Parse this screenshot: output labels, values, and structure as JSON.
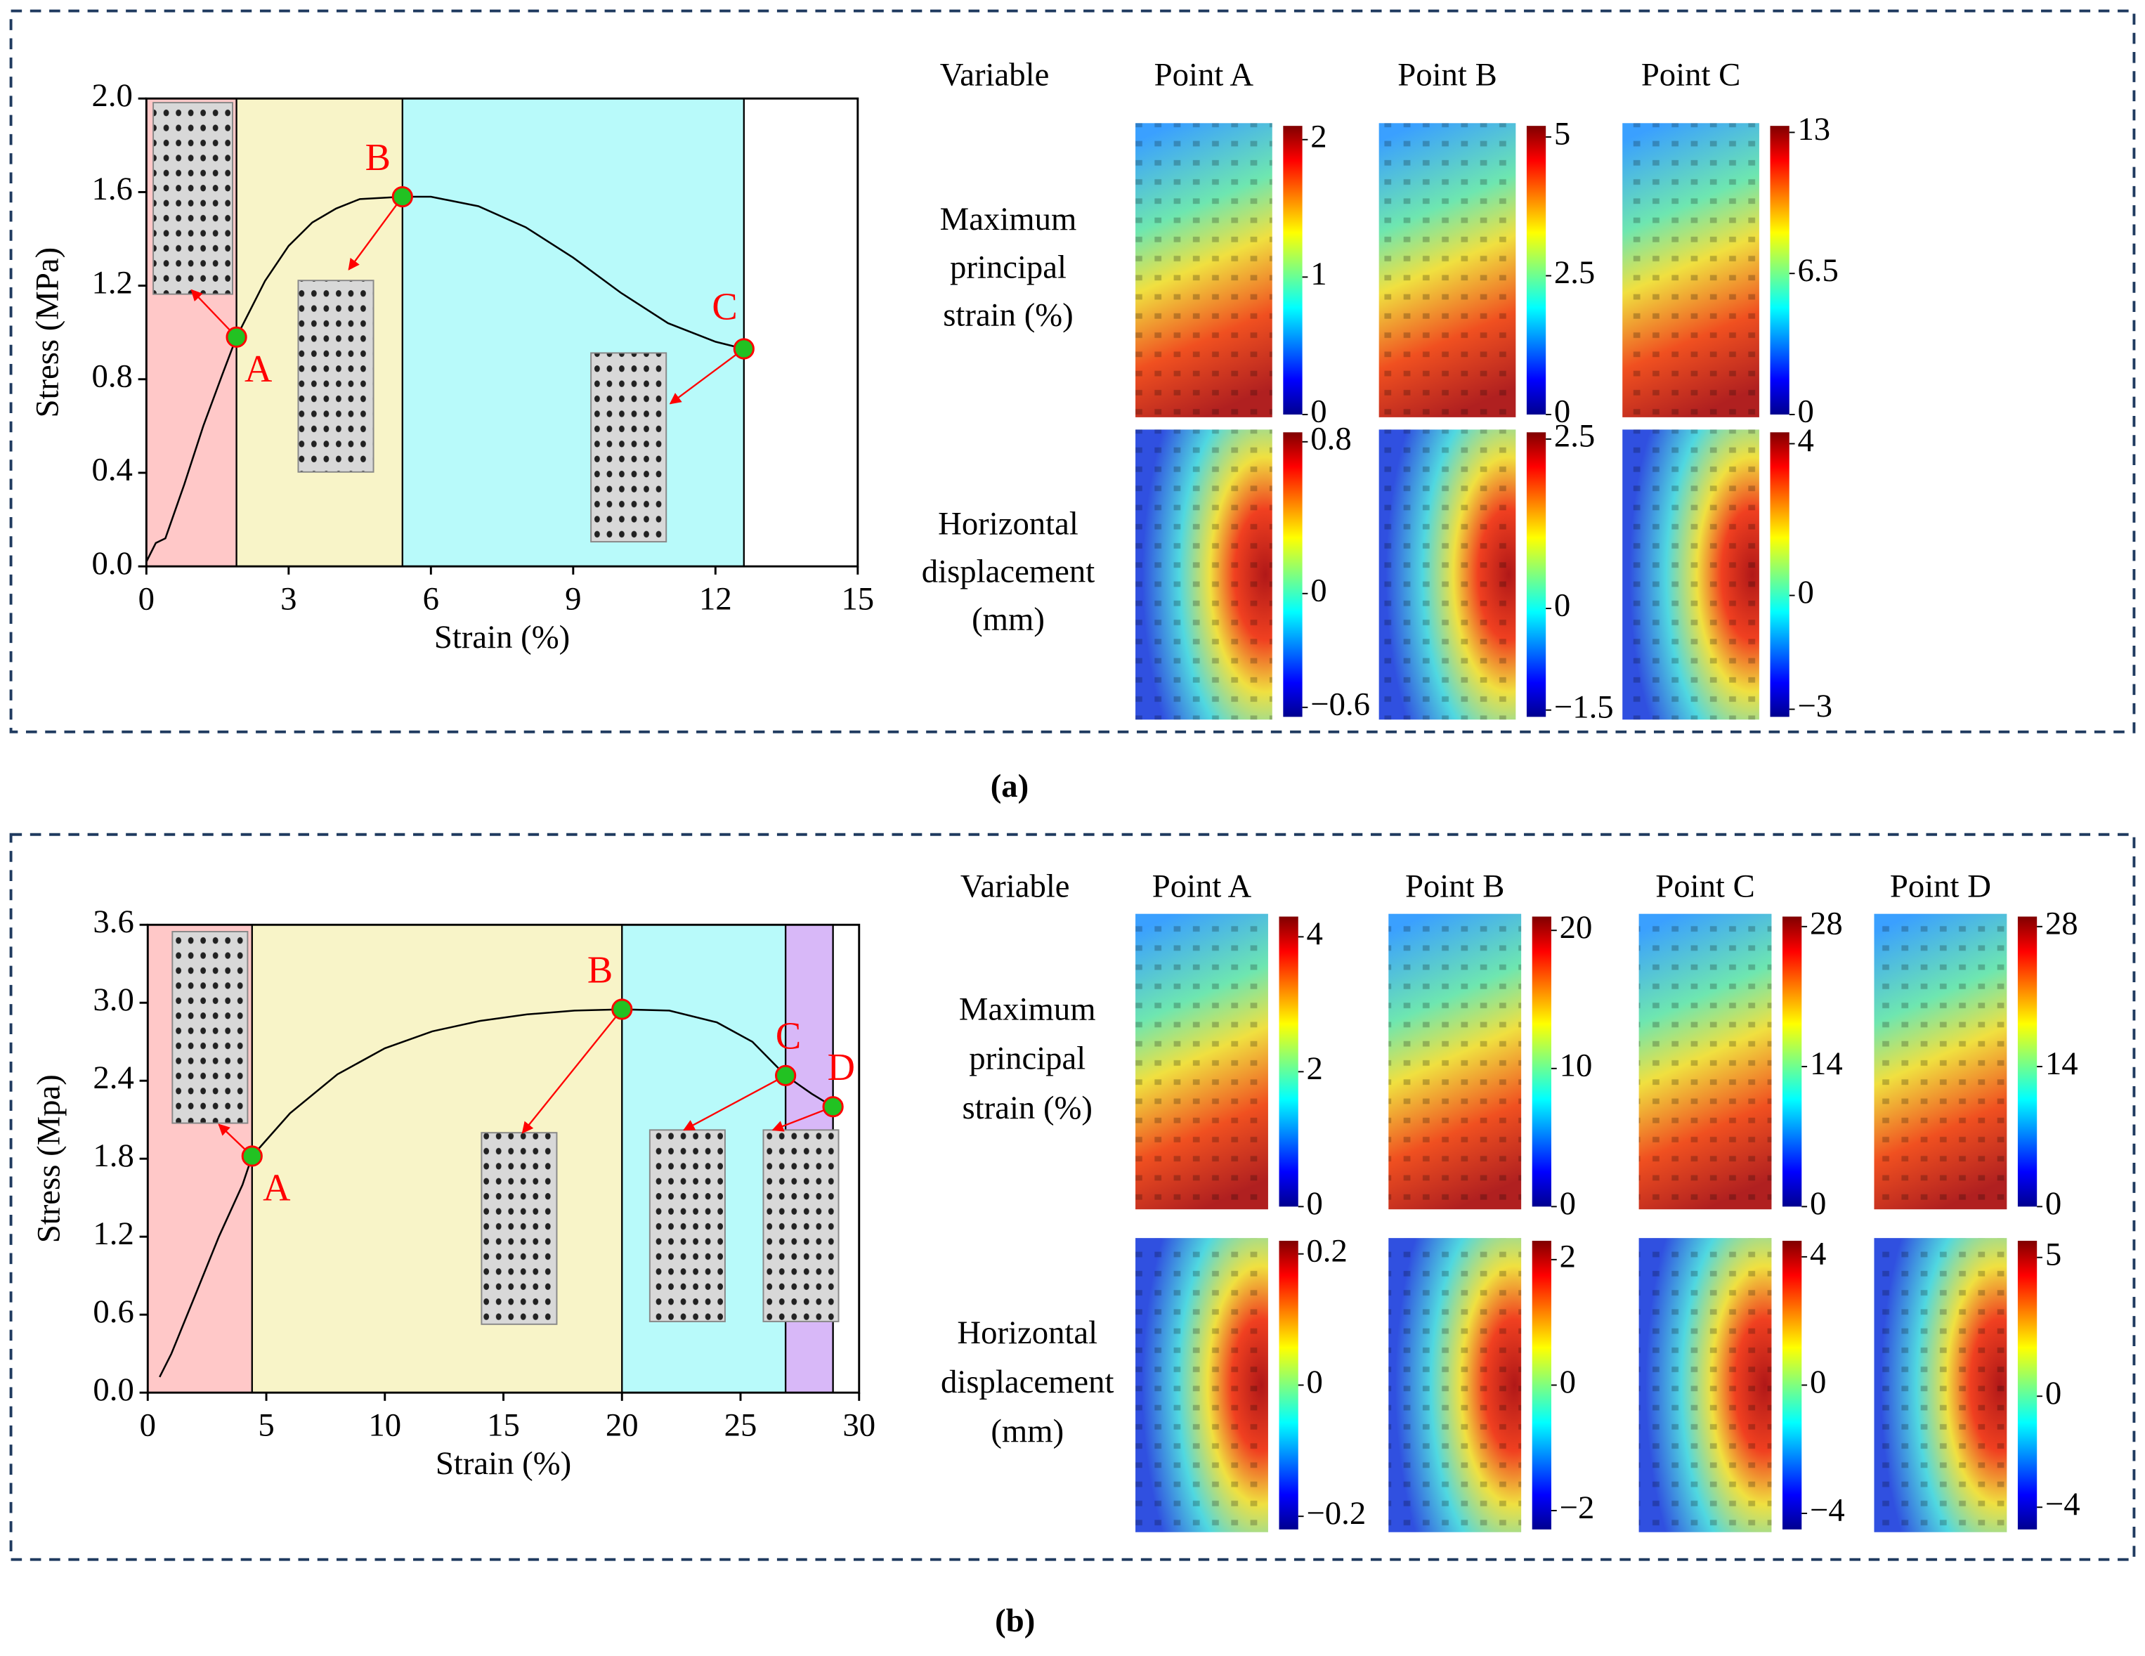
{
  "chart_data": [
    {
      "type": "line",
      "panel_label": "(a)",
      "xlabel": "Strain (%)",
      "ylabel": "Stress (MPa)",
      "xlim": [
        0,
        15
      ],
      "xticks": [
        0,
        3,
        6,
        9,
        12,
        15
      ],
      "ylim": [
        0,
        2.0
      ],
      "yticks": [
        {
          "value": 0,
          "label": "0.0"
        },
        0.4,
        0.8,
        1.2,
        1.6,
        {
          "value": 2,
          "label": "2.0"
        }
      ],
      "x": [
        0,
        0.2,
        0.4,
        0.8,
        1.2,
        1.6,
        1.9,
        2.5,
        3,
        3.5,
        4,
        4.5,
        5.4,
        6,
        7,
        8,
        9,
        10,
        11,
        12,
        12.6
      ],
      "values": [
        0.02,
        0.1,
        0.12,
        0.35,
        0.6,
        0.82,
        0.98,
        1.22,
        1.37,
        1.47,
        1.53,
        1.57,
        1.58,
        1.58,
        1.54,
        1.45,
        1.32,
        1.17,
        1.04,
        0.96,
        0.93
      ],
      "color": "#000000",
      "points": {
        "labels": [
          "A",
          "B",
          "C"
        ],
        "x": [
          1.9,
          5.4,
          12.6
        ],
        "values": [
          0.98,
          1.58,
          0.93
        ],
        "color": "#22c222",
        "edge_color": "#ff0000"
      },
      "regions": {
        "bounds": [
          0,
          1.9,
          5.4,
          12.6
        ],
        "colors": [
          "#ffc8c8",
          "#f8f4c8",
          "#b8fafa"
        ]
      },
      "field_maps": {
        "header": "Variable",
        "columns": [
          "Point A",
          "Point B",
          "Point C"
        ],
        "rows": [
          {
            "label_lines": [
              "Maximum",
              "principal",
              "strain (%)"
            ],
            "colorbars": [
              {
                "ylim": [
                  0,
                  2.1
                ],
                "yticks": [
                  2,
                  1,
                  0
                ]
              },
              {
                "ylim": [
                  0,
                  5.2
                ],
                "yticks": [
                  5,
                  2.5,
                  0
                ]
              },
              {
                "ylim": [
                  0,
                  13.3
                ],
                "yticks": [
                  13,
                  6.5,
                  0
                ]
              }
            ]
          },
          {
            "label_lines": [
              "Horizontal",
              "displacement",
              "(mm)"
            ],
            "colorbars": [
              {
                "ylim": [
                  -0.65,
                  0.85
                ],
                "yticks": [
                  0.8,
                  0,
                  {
                    "value": -0.6,
                    "label": "−0.6"
                  }
                ]
              },
              {
                "ylim": [
                  -1.6,
                  2.6
                ],
                "yticks": [
                  2.5,
                  0,
                  {
                    "value": -1.5,
                    "label": "−1.5"
                  }
                ]
              },
              {
                "ylim": [
                  -3.2,
                  4.3
                ],
                "yticks": [
                  4,
                  0,
                  {
                    "value": -3,
                    "label": "−3"
                  }
                ]
              }
            ]
          }
        ]
      }
    },
    {
      "type": "line",
      "panel_label": "(b)",
      "xlabel": "Strain (%)",
      "ylabel": "Stress (Mpa)",
      "xlim": [
        0,
        30
      ],
      "xticks": [
        0,
        5,
        10,
        15,
        20,
        25,
        30
      ],
      "ylim": [
        0,
        3.6
      ],
      "yticks": [
        {
          "value": 0,
          "label": "0.0"
        },
        0.6,
        1.2,
        1.8,
        2.4,
        {
          "value": 3,
          "label": "3.0"
        },
        3.6
      ],
      "x": [
        0.5,
        1,
        2,
        3,
        4,
        4.4,
        6,
        8,
        10,
        12,
        14,
        16,
        18,
        20,
        22,
        24,
        25.5,
        26.9,
        28,
        28.9
      ],
      "values": [
        0.12,
        0.3,
        0.75,
        1.2,
        1.6,
        1.82,
        2.15,
        2.45,
        2.65,
        2.78,
        2.86,
        2.91,
        2.94,
        2.95,
        2.94,
        2.85,
        2.7,
        2.44,
        2.3,
        2.2
      ],
      "color": "#000000",
      "points": {
        "labels": [
          "A",
          "B",
          "C",
          "D"
        ],
        "x": [
          4.4,
          20,
          26.9,
          28.9
        ],
        "values": [
          1.82,
          2.95,
          2.44,
          2.2
        ],
        "color": "#22c222",
        "edge_color": "#ff0000"
      },
      "regions": {
        "bounds": [
          0,
          4.4,
          20,
          26.9,
          28.9
        ],
        "colors": [
          "#ffc8c8",
          "#f8f4c8",
          "#b8fafa",
          "#d8b8f8"
        ]
      },
      "field_maps": {
        "header": "Variable",
        "columns": [
          "Point A",
          "Point B",
          "Point C",
          "Point D"
        ],
        "rows": [
          {
            "label_lines": [
              "Maximum",
              "principal",
              "strain (%)"
            ],
            "colorbars": [
              {
                "ylim": [
                  0,
                  4.3
                ],
                "yticks": [
                  4,
                  2,
                  0
                ]
              },
              {
                "ylim": [
                  0,
                  21
                ],
                "yticks": [
                  20,
                  10,
                  0
                ]
              },
              {
                "ylim": [
                  0,
                  29
                ],
                "yticks": [
                  28,
                  14,
                  0
                ]
              },
              {
                "ylim": [
                  0,
                  29
                ],
                "yticks": [
                  28,
                  14,
                  0
                ]
              }
            ]
          },
          {
            "label_lines": [
              "Horizontal",
              "displacement",
              "(mm)"
            ],
            "colorbars": [
              {
                "ylim": [
                  -0.22,
                  0.22
                ],
                "yticks": [
                  0.2,
                  0,
                  {
                    "value": -0.2,
                    "label": "−0.2"
                  }
                ]
              },
              {
                "ylim": [
                  -2.3,
                  2.3
                ],
                "yticks": [
                  2,
                  0,
                  {
                    "value": -2,
                    "label": "−2"
                  }
                ]
              },
              {
                "ylim": [
                  -4.5,
                  4.5
                ],
                "yticks": [
                  4,
                  0,
                  {
                    "value": -4,
                    "label": "−4"
                  }
                ]
              },
              {
                "ylim": [
                  -4.8,
                  5.6
                ],
                "yticks": [
                  5,
                  0,
                  {
                    "value": -4,
                    "label": "−4"
                  }
                ]
              }
            ]
          }
        ]
      }
    }
  ]
}
